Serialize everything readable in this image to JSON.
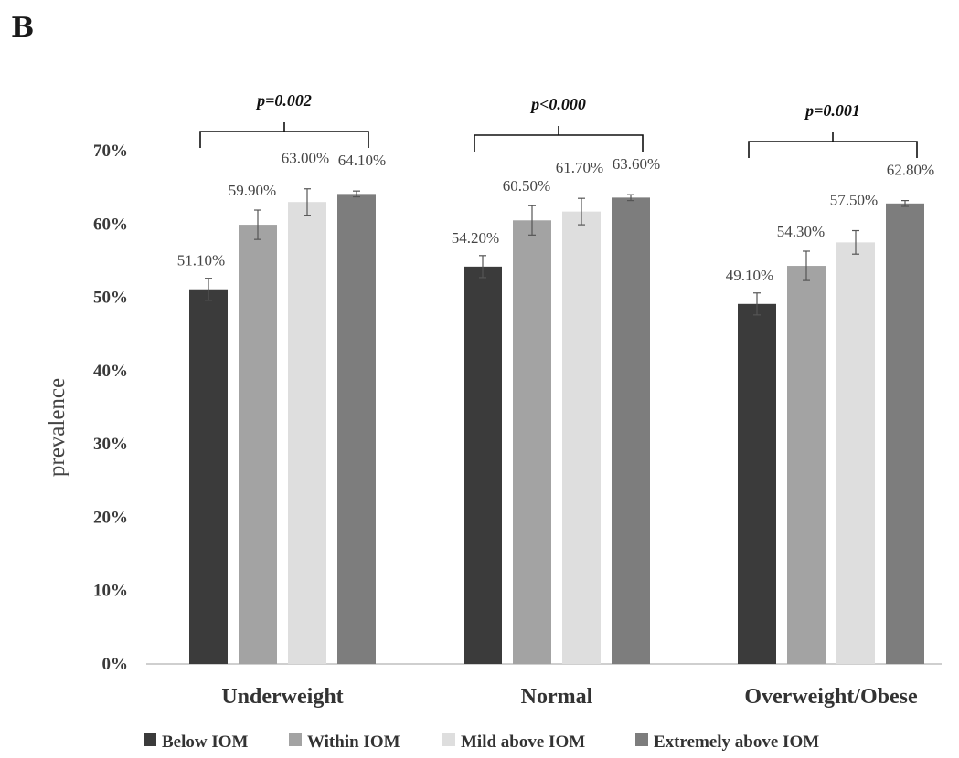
{
  "panel_label": "B",
  "colors": {
    "series": [
      "#3b3b3b",
      "#a3a3a3",
      "#dedede",
      "#7d7d7d"
    ],
    "axis": "#bfbfbf",
    "errorbar": "#555555",
    "bracket": "#111111"
  },
  "chart_data": {
    "type": "bar",
    "categories": [
      "Underweight",
      "Normal",
      "Overweight/Obese"
    ],
    "series": [
      {
        "name": "Below IOM",
        "values": [
          51.1,
          54.2,
          49.1
        ],
        "labels": [
          "51.10%",
          "54.20%",
          "49.10%"
        ],
        "errors": [
          1.5,
          1.5,
          1.5
        ]
      },
      {
        "name": "Within IOM",
        "values": [
          59.9,
          60.5,
          54.3
        ],
        "labels": [
          "59.90%",
          "60.50%",
          "54.30%"
        ],
        "errors": [
          2.0,
          2.0,
          2.0
        ]
      },
      {
        "name": "Mild above IOM",
        "values": [
          63.0,
          61.7,
          57.5
        ],
        "labels": [
          "63.00%",
          "61.70%",
          "57.50%"
        ],
        "errors": [
          1.8,
          1.8,
          1.6
        ]
      },
      {
        "name": "Extremely above IOM",
        "values": [
          64.1,
          63.6,
          62.8
        ],
        "labels": [
          "64.10%",
          "63.60%",
          "62.80%"
        ],
        "errors": [
          0.4,
          0.4,
          0.4
        ]
      }
    ],
    "ylabel": "prevalence",
    "xlabel": "",
    "title": "",
    "ylim": [
      0,
      70
    ],
    "yticks": [
      0,
      10,
      20,
      30,
      40,
      50,
      60,
      70
    ],
    "ytick_labels": [
      "0%",
      "10%",
      "20%",
      "30%",
      "40%",
      "50%",
      "60%",
      "70%"
    ],
    "annotations": [
      "p=0.002",
      "p<0.000",
      "p=0.001"
    ],
    "grid": false,
    "legend_position": "bottom"
  }
}
